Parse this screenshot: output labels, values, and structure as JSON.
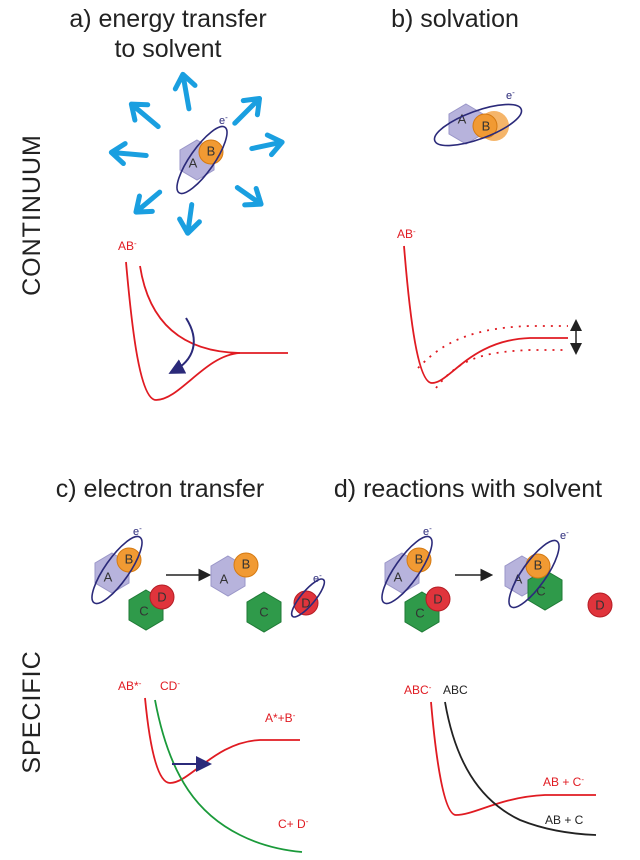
{
  "row_labels": {
    "top": "CONTINUUM",
    "bottom": "SPECIFIC"
  },
  "panel_a": {
    "title": [
      "a) energy transfer",
      "to solvent"
    ],
    "atoms": [
      "A",
      "B"
    ],
    "electron": {
      "base": "e",
      "sup": "-"
    },
    "curve_label": {
      "base": "AB",
      "sup": "-"
    }
  },
  "panel_b": {
    "title": "b) solvation",
    "atoms": [
      "A",
      "B"
    ],
    "electron": {
      "base": "e",
      "sup": "-"
    },
    "curve_label": {
      "base": "AB",
      "sup": "-"
    }
  },
  "panel_c": {
    "title": "c) electron transfer",
    "reactant_atoms": [
      "A",
      "B",
      "C",
      "D"
    ],
    "reactant_electron": {
      "base": "e",
      "sup": "-"
    },
    "product_atoms": [
      "A",
      "B",
      "C",
      "D"
    ],
    "product_electron": {
      "base": "e",
      "sup": "-"
    },
    "curve_labels": [
      {
        "base": "AB*",
        "sup": "-"
      },
      {
        "base": "CD",
        "sup": "-"
      },
      {
        "base": "A*+B",
        "sup": "-"
      },
      {
        "base": "C+ D",
        "sup": "-"
      }
    ]
  },
  "panel_d": {
    "title": "d) reactions with solvent",
    "reactant_atoms": [
      "A",
      "B",
      "C",
      "D"
    ],
    "reactant_electron": {
      "base": "e",
      "sup": "-"
    },
    "product_atoms": [
      "A",
      "B",
      "C",
      "D"
    ],
    "product_electron": {
      "base": "e",
      "sup": "-"
    },
    "curve_labels": [
      {
        "base": "ABC",
        "sup": "-"
      },
      {
        "base": "ABC"
      },
      {
        "base": "AB + C",
        "sup": "-"
      },
      {
        "base": "AB + C"
      }
    ]
  }
}
